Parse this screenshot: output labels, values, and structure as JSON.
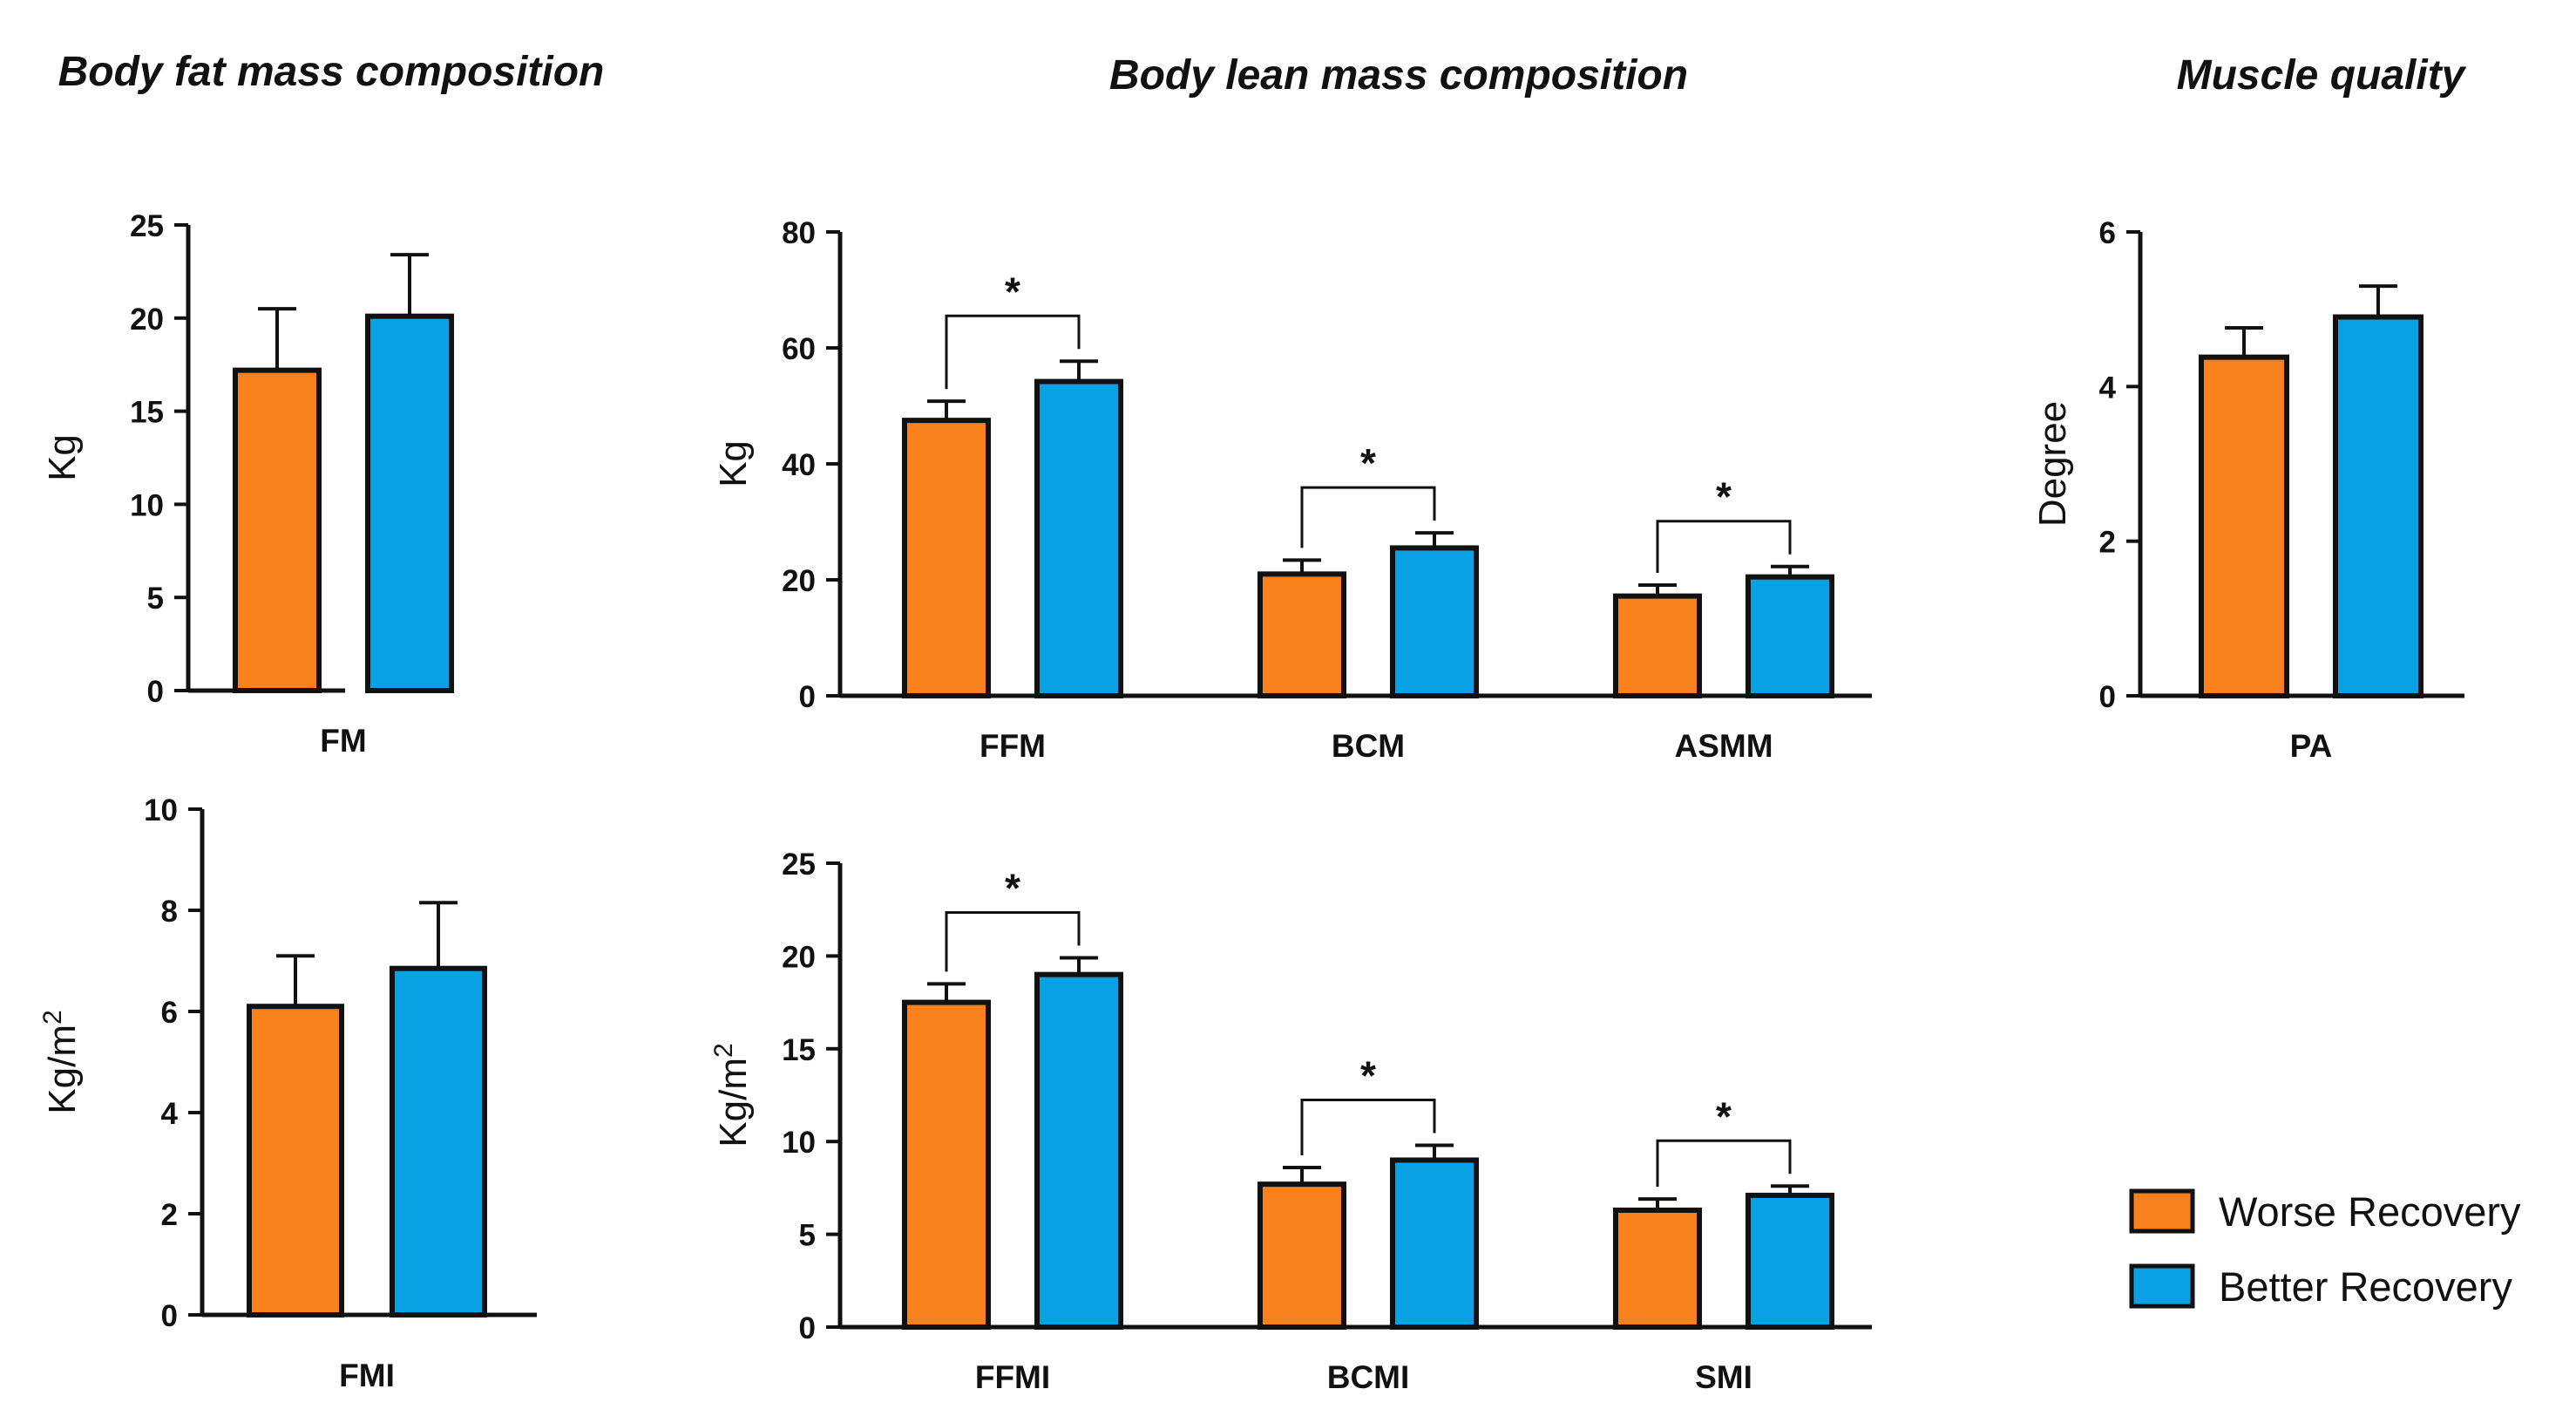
{
  "colors": {
    "worse": "#F8801D",
    "better": "#0AA1E4",
    "ink": "#111111"
  },
  "sections": [
    {
      "title": "Body fat mass composition"
    },
    {
      "title": "Body lean mass composition"
    },
    {
      "title": "Muscle quality"
    }
  ],
  "legend": [
    {
      "label": "Worse Recovery",
      "color": "#F8801D"
    },
    {
      "label": "Better Recovery",
      "color": "#0AA1E4"
    }
  ],
  "chart_data": [
    {
      "type": "bar",
      "id": "fm",
      "section": "Body fat mass composition",
      "ylabel": "Kg",
      "ylabel_sup": "",
      "ylim": [
        0,
        25
      ],
      "yticks": [
        0,
        5,
        10,
        15,
        20,
        25
      ],
      "categories": [
        "FM"
      ],
      "series": [
        {
          "name": "Worse Recovery",
          "values": [
            17.2
          ],
          "errors": [
            3.3
          ]
        },
        {
          "name": "Better Recovery",
          "values": [
            20.1
          ],
          "errors": [
            3.3
          ]
        }
      ],
      "significance": []
    },
    {
      "type": "bar",
      "id": "fmi",
      "section": "Body fat mass composition",
      "ylabel": "Kg/m",
      "ylabel_sup": "2",
      "ylim": [
        0,
        10
      ],
      "yticks": [
        0,
        2,
        4,
        6,
        8,
        10
      ],
      "categories": [
        "FMI"
      ],
      "series": [
        {
          "name": "Worse Recovery",
          "values": [
            6.1
          ],
          "errors": [
            1.0
          ]
        },
        {
          "name": "Better Recovery",
          "values": [
            6.85
          ],
          "errors": [
            1.3
          ]
        }
      ],
      "significance": []
    },
    {
      "type": "bar",
      "id": "lean",
      "section": "Body lean mass composition",
      "ylabel": "Kg",
      "ylabel_sup": "",
      "ylim": [
        0,
        80
      ],
      "yticks": [
        0,
        20,
        40,
        60,
        80
      ],
      "categories": [
        "FFM",
        "BCM",
        "ASMM"
      ],
      "series": [
        {
          "name": "Worse Recovery",
          "values": [
            47.5,
            21.0,
            17.2
          ],
          "errors": [
            3.3,
            2.4,
            1.9
          ]
        },
        {
          "name": "Better Recovery",
          "values": [
            54.2,
            25.5,
            20.5
          ],
          "errors": [
            3.5,
            2.6,
            1.8
          ]
        }
      ],
      "significance": [
        {
          "category": 0,
          "label": "*"
        },
        {
          "category": 1,
          "label": "*"
        },
        {
          "category": 2,
          "label": "*"
        }
      ]
    },
    {
      "type": "bar",
      "id": "lean-index",
      "section": "Body lean mass composition",
      "ylabel": "Kg/m",
      "ylabel_sup": "2",
      "ylim": [
        0,
        25
      ],
      "yticks": [
        0,
        5,
        10,
        15,
        20,
        25
      ],
      "categories": [
        "FFMI",
        "BCMI",
        "SMI"
      ],
      "series": [
        {
          "name": "Worse Recovery",
          "values": [
            17.5,
            7.7,
            6.3
          ],
          "errors": [
            1.0,
            0.9,
            0.6
          ]
        },
        {
          "name": "Better Recovery",
          "values": [
            19.0,
            9.0,
            7.1
          ],
          "errors": [
            0.9,
            0.8,
            0.5
          ]
        }
      ],
      "significance": [
        {
          "category": 0,
          "label": "*"
        },
        {
          "category": 1,
          "label": "*"
        },
        {
          "category": 2,
          "label": "*"
        }
      ]
    },
    {
      "type": "bar",
      "id": "pa",
      "section": "Muscle quality",
      "ylabel": "Degree",
      "ylabel_sup": "",
      "ylim": [
        0,
        6
      ],
      "yticks": [
        0,
        2,
        4,
        6
      ],
      "categories": [
        "PA"
      ],
      "series": [
        {
          "name": "Worse Recovery",
          "values": [
            4.38
          ],
          "errors": [
            0.38
          ]
        },
        {
          "name": "Better Recovery",
          "values": [
            4.9
          ],
          "errors": [
            0.4
          ]
        }
      ],
      "significance": []
    }
  ]
}
